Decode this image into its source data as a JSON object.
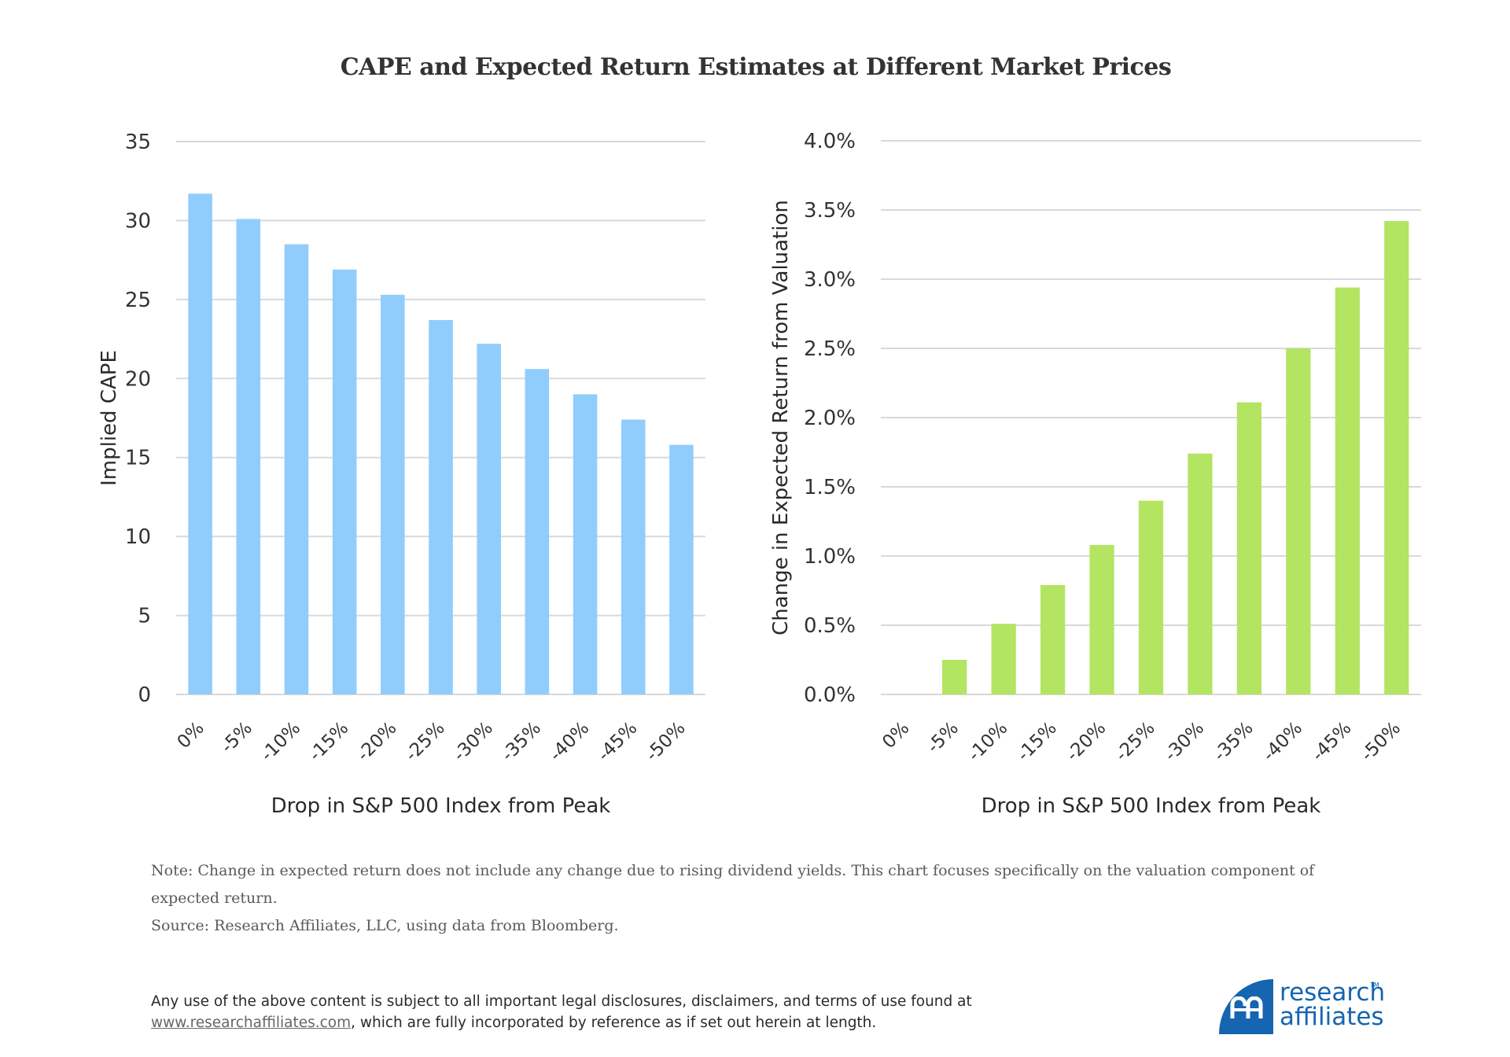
{
  "title": "CAPE and Expected Return Estimates at Different Market Prices",
  "chart_data": [
    {
      "type": "bar",
      "title": "",
      "categories": [
        "0%",
        "-5%",
        "-10%",
        "-15%",
        "-20%",
        "-25%",
        "-30%",
        "-35%",
        "-40%",
        "-45%",
        "-50%"
      ],
      "values": [
        31.7,
        30.1,
        28.5,
        26.9,
        25.3,
        23.7,
        22.2,
        20.6,
        19.0,
        17.4,
        15.8
      ],
      "xlabel": "Drop in S&P 500 Index from Peak",
      "ylabel": "Implied CAPE",
      "ylim": [
        0,
        35
      ],
      "yticks": [
        0,
        5,
        10,
        15,
        20,
        25,
        30,
        35
      ],
      "ytick_labels": [
        "0",
        "5",
        "10",
        "15",
        "20",
        "25",
        "30",
        "35"
      ],
      "grid": true,
      "legend": "none",
      "color": "#90cdfc"
    },
    {
      "type": "bar",
      "title": "",
      "categories": [
        "0%",
        "-5%",
        "-10%",
        "-15%",
        "-20%",
        "-25%",
        "-30%",
        "-35%",
        "-40%",
        "-45%",
        "-50%"
      ],
      "values": [
        0.0,
        0.25,
        0.51,
        0.79,
        1.08,
        1.4,
        1.74,
        2.11,
        2.5,
        2.94,
        3.42
      ],
      "value_unit": "%",
      "xlabel": "Drop in S&P 500 Index from Peak",
      "ylabel": "Change in Expected Return from Valuation",
      "ylim": [
        0,
        4.0
      ],
      "yticks": [
        0,
        0.5,
        1.0,
        1.5,
        2.0,
        2.5,
        3.0,
        3.5,
        4.0
      ],
      "ytick_labels": [
        "0.0%",
        "0.5%",
        "1.0%",
        "1.5%",
        "2.0%",
        "2.5%",
        "3.0%",
        "3.5%",
        "4.0%"
      ],
      "grid": true,
      "legend": "none",
      "color": "#b3e462"
    }
  ],
  "notes": {
    "note": "Note: Change in expected return does not include any change due to rising dividend yields. This chart focuses specifically on the valuation component of expected return.",
    "source": "Source: Research Affiliates, LLC, using data from Bloomberg."
  },
  "disclaimer": {
    "line1": "Any use of the above content is subject to all important legal disclosures, disclaimers, and terms of use found at",
    "link": "www.researchaffiliates.com",
    "line2_rest": ", which are fully incorporated by reference as if set out herein at length."
  },
  "logo": {
    "word1": "research",
    "word2": "affiliates",
    "tm": "TM",
    "color": "#1565b0"
  }
}
